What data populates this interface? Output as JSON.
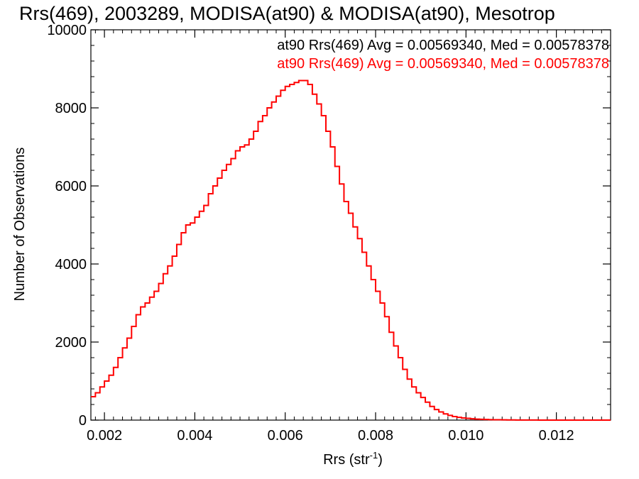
{
  "chart_data": {
    "type": "line",
    "title": "Rrs(469), 2003289, MODISA(at90) & MODISA(at90), Mesotrop",
    "xlabel": "Rrs (str",
    "xlabel_sup": "-1",
    "xlabel_close": ")",
    "ylabel": "Number of Observations",
    "xlim": [
      0.0017,
      0.0132
    ],
    "ylim": [
      0,
      10000
    ],
    "x_ticks": [
      0.002,
      0.004,
      0.006,
      0.008,
      0.01,
      0.012
    ],
    "x_tick_labels": [
      "0.002",
      "0.004",
      "0.006",
      "0.008",
      "0.010",
      "0.012"
    ],
    "y_ticks": [
      0,
      2000,
      4000,
      6000,
      8000,
      10000
    ],
    "y_tick_labels": [
      "0",
      "2000",
      "4000",
      "6000",
      "8000",
      "10000"
    ],
    "grid": false,
    "annotations": [
      {
        "text": "at90 Rrs(469) Avg = 0.00569340, Med = 0.00578378",
        "color": "#000000"
      },
      {
        "text": "at90 Rrs(469) Avg = 0.00569340, Med = 0.00578378",
        "color": "#ff0000"
      }
    ],
    "series": [
      {
        "color": "#ff0000",
        "step": true,
        "x": [
          0.0017,
          0.0018,
          0.0019,
          0.002,
          0.0021,
          0.0022,
          0.0023,
          0.0024,
          0.0025,
          0.0026,
          0.0027,
          0.0028,
          0.0029,
          0.003,
          0.0031,
          0.0032,
          0.0033,
          0.0034,
          0.0035,
          0.0036,
          0.0037,
          0.0038,
          0.0039,
          0.004,
          0.0041,
          0.0042,
          0.0043,
          0.0044,
          0.0045,
          0.0046,
          0.0047,
          0.0048,
          0.0049,
          0.005,
          0.0051,
          0.0052,
          0.0053,
          0.0054,
          0.0055,
          0.0056,
          0.0057,
          0.0058,
          0.0059,
          0.006,
          0.0061,
          0.0062,
          0.0063,
          0.0064,
          0.0065,
          0.0066,
          0.0067,
          0.0068,
          0.0069,
          0.007,
          0.0071,
          0.0072,
          0.0073,
          0.0074,
          0.0075,
          0.0076,
          0.0077,
          0.0078,
          0.0079,
          0.008,
          0.0081,
          0.0082,
          0.0083,
          0.0084,
          0.0085,
          0.0086,
          0.0087,
          0.0088,
          0.0089,
          0.009,
          0.0091,
          0.0092,
          0.0093,
          0.0094,
          0.0095,
          0.0096,
          0.0097,
          0.0098,
          0.0099,
          0.01,
          0.0101,
          0.0102,
          0.0103,
          0.0104,
          0.0105,
          0.0106,
          0.0107,
          0.0108,
          0.0109,
          0.011,
          0.0111,
          0.0112,
          0.0113,
          0.0114,
          0.0115,
          0.0116,
          0.0117,
          0.0118,
          0.0119,
          0.012,
          0.0121,
          0.0122,
          0.0123,
          0.0124,
          0.0125,
          0.0126,
          0.0127,
          0.0128,
          0.0129,
          0.013,
          0.0131,
          0.0132
        ],
        "values": [
          600,
          700,
          850,
          1000,
          1150,
          1350,
          1600,
          1850,
          2100,
          2400,
          2700,
          2900,
          3000,
          3150,
          3300,
          3500,
          3750,
          3950,
          4200,
          4500,
          4800,
          5000,
          5050,
          5200,
          5350,
          5500,
          5800,
          6000,
          6200,
          6400,
          6550,
          6700,
          6900,
          7000,
          7050,
          7200,
          7400,
          7650,
          7800,
          8000,
          8150,
          8300,
          8450,
          8550,
          8600,
          8650,
          8700,
          8700,
          8600,
          8350,
          8100,
          7800,
          7400,
          7000,
          6500,
          6050,
          5600,
          5300,
          4950,
          4650,
          4300,
          3950,
          3600,
          3300,
          3000,
          2650,
          2250,
          1900,
          1600,
          1300,
          1050,
          850,
          700,
          580,
          460,
          350,
          270,
          210,
          160,
          120,
          90,
          70,
          55,
          45,
          35,
          25,
          20,
          15,
          12,
          10,
          8,
          6,
          5,
          4,
          3,
          3,
          2,
          2,
          2,
          1,
          1,
          1,
          1,
          1,
          1,
          1,
          0,
          0,
          0,
          0,
          0,
          0,
          0,
          0,
          0,
          0
        ]
      }
    ]
  }
}
